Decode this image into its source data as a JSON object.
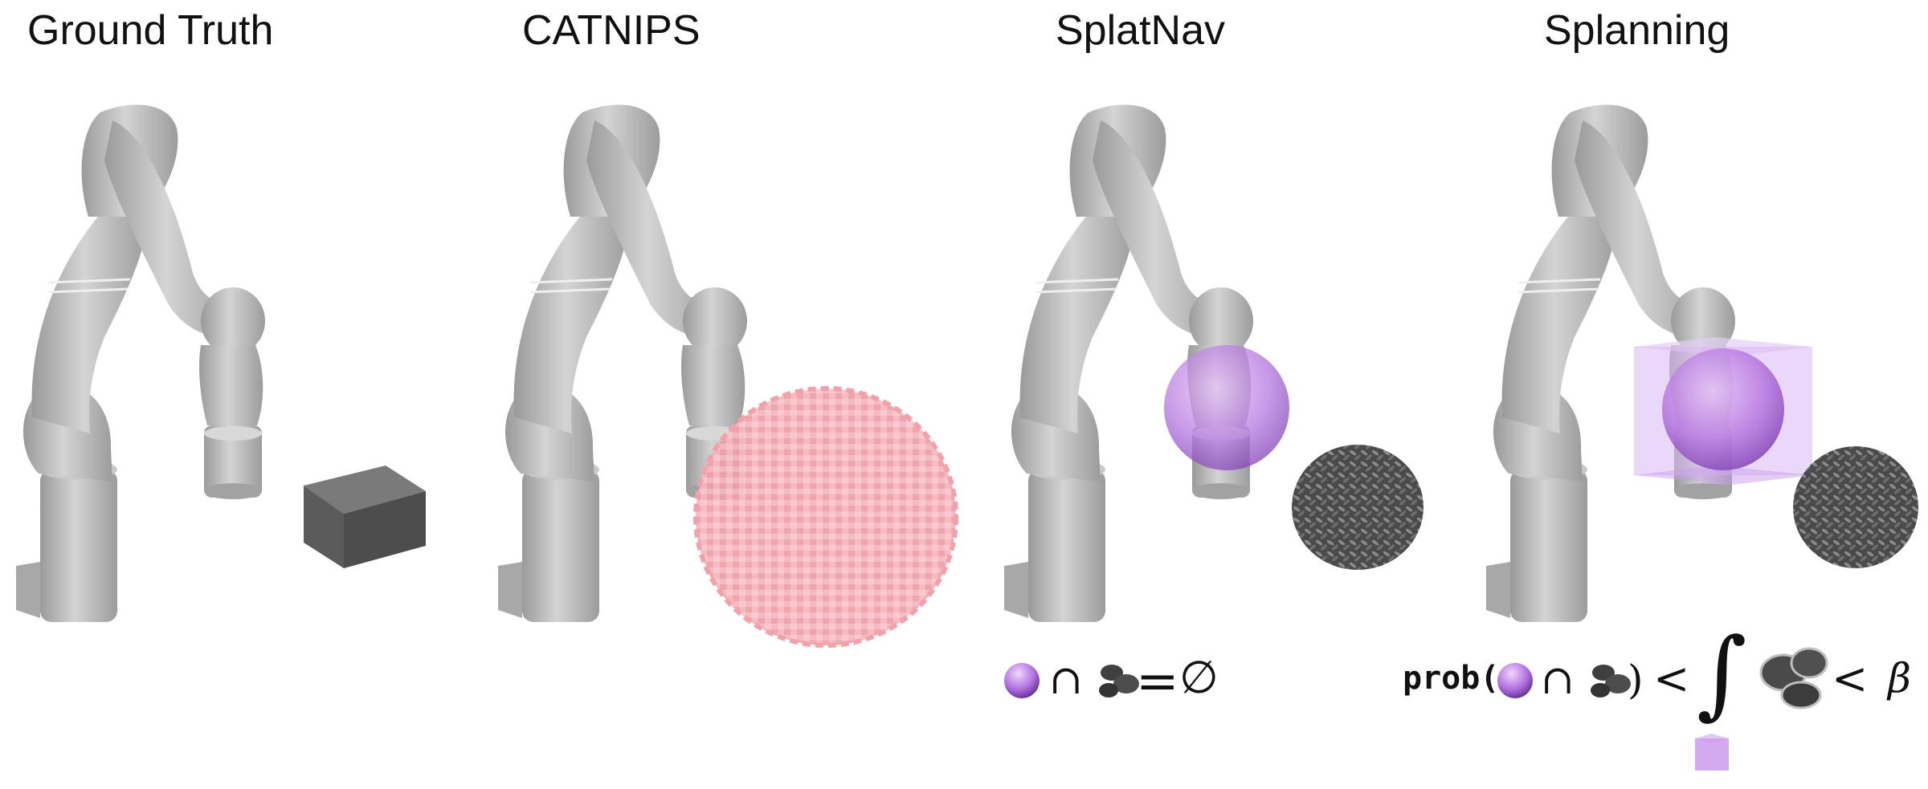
{
  "panels": [
    {
      "title": "Ground Truth",
      "obstacle": "solid-cube"
    },
    {
      "title": "CATNIPS",
      "obstacle": "voxel-sphere"
    },
    {
      "title": "SplatNav",
      "obstacle": "gaussian-splat",
      "bound": "sphere"
    },
    {
      "title": "Splanning",
      "obstacle": "gaussian-splat",
      "bound": "sphere-in-box"
    }
  ],
  "formulas": {
    "splatnav": {
      "intersect": "∩",
      "equals": "=",
      "empty": "∅"
    },
    "splanning": {
      "prob": "prob(",
      "intersect": "∩",
      "close": ")",
      "lt1": "<",
      "integral": "∫",
      "lt2": "<",
      "beta": "β"
    }
  },
  "colors": {
    "robot": "#b9b9b9",
    "robot_dark": "#8c8c8c",
    "cube": "#555555",
    "voxel": "#f2a8b0",
    "sphere": "#b26be0",
    "box": "#d7b6f0",
    "splat": "#555555"
  }
}
